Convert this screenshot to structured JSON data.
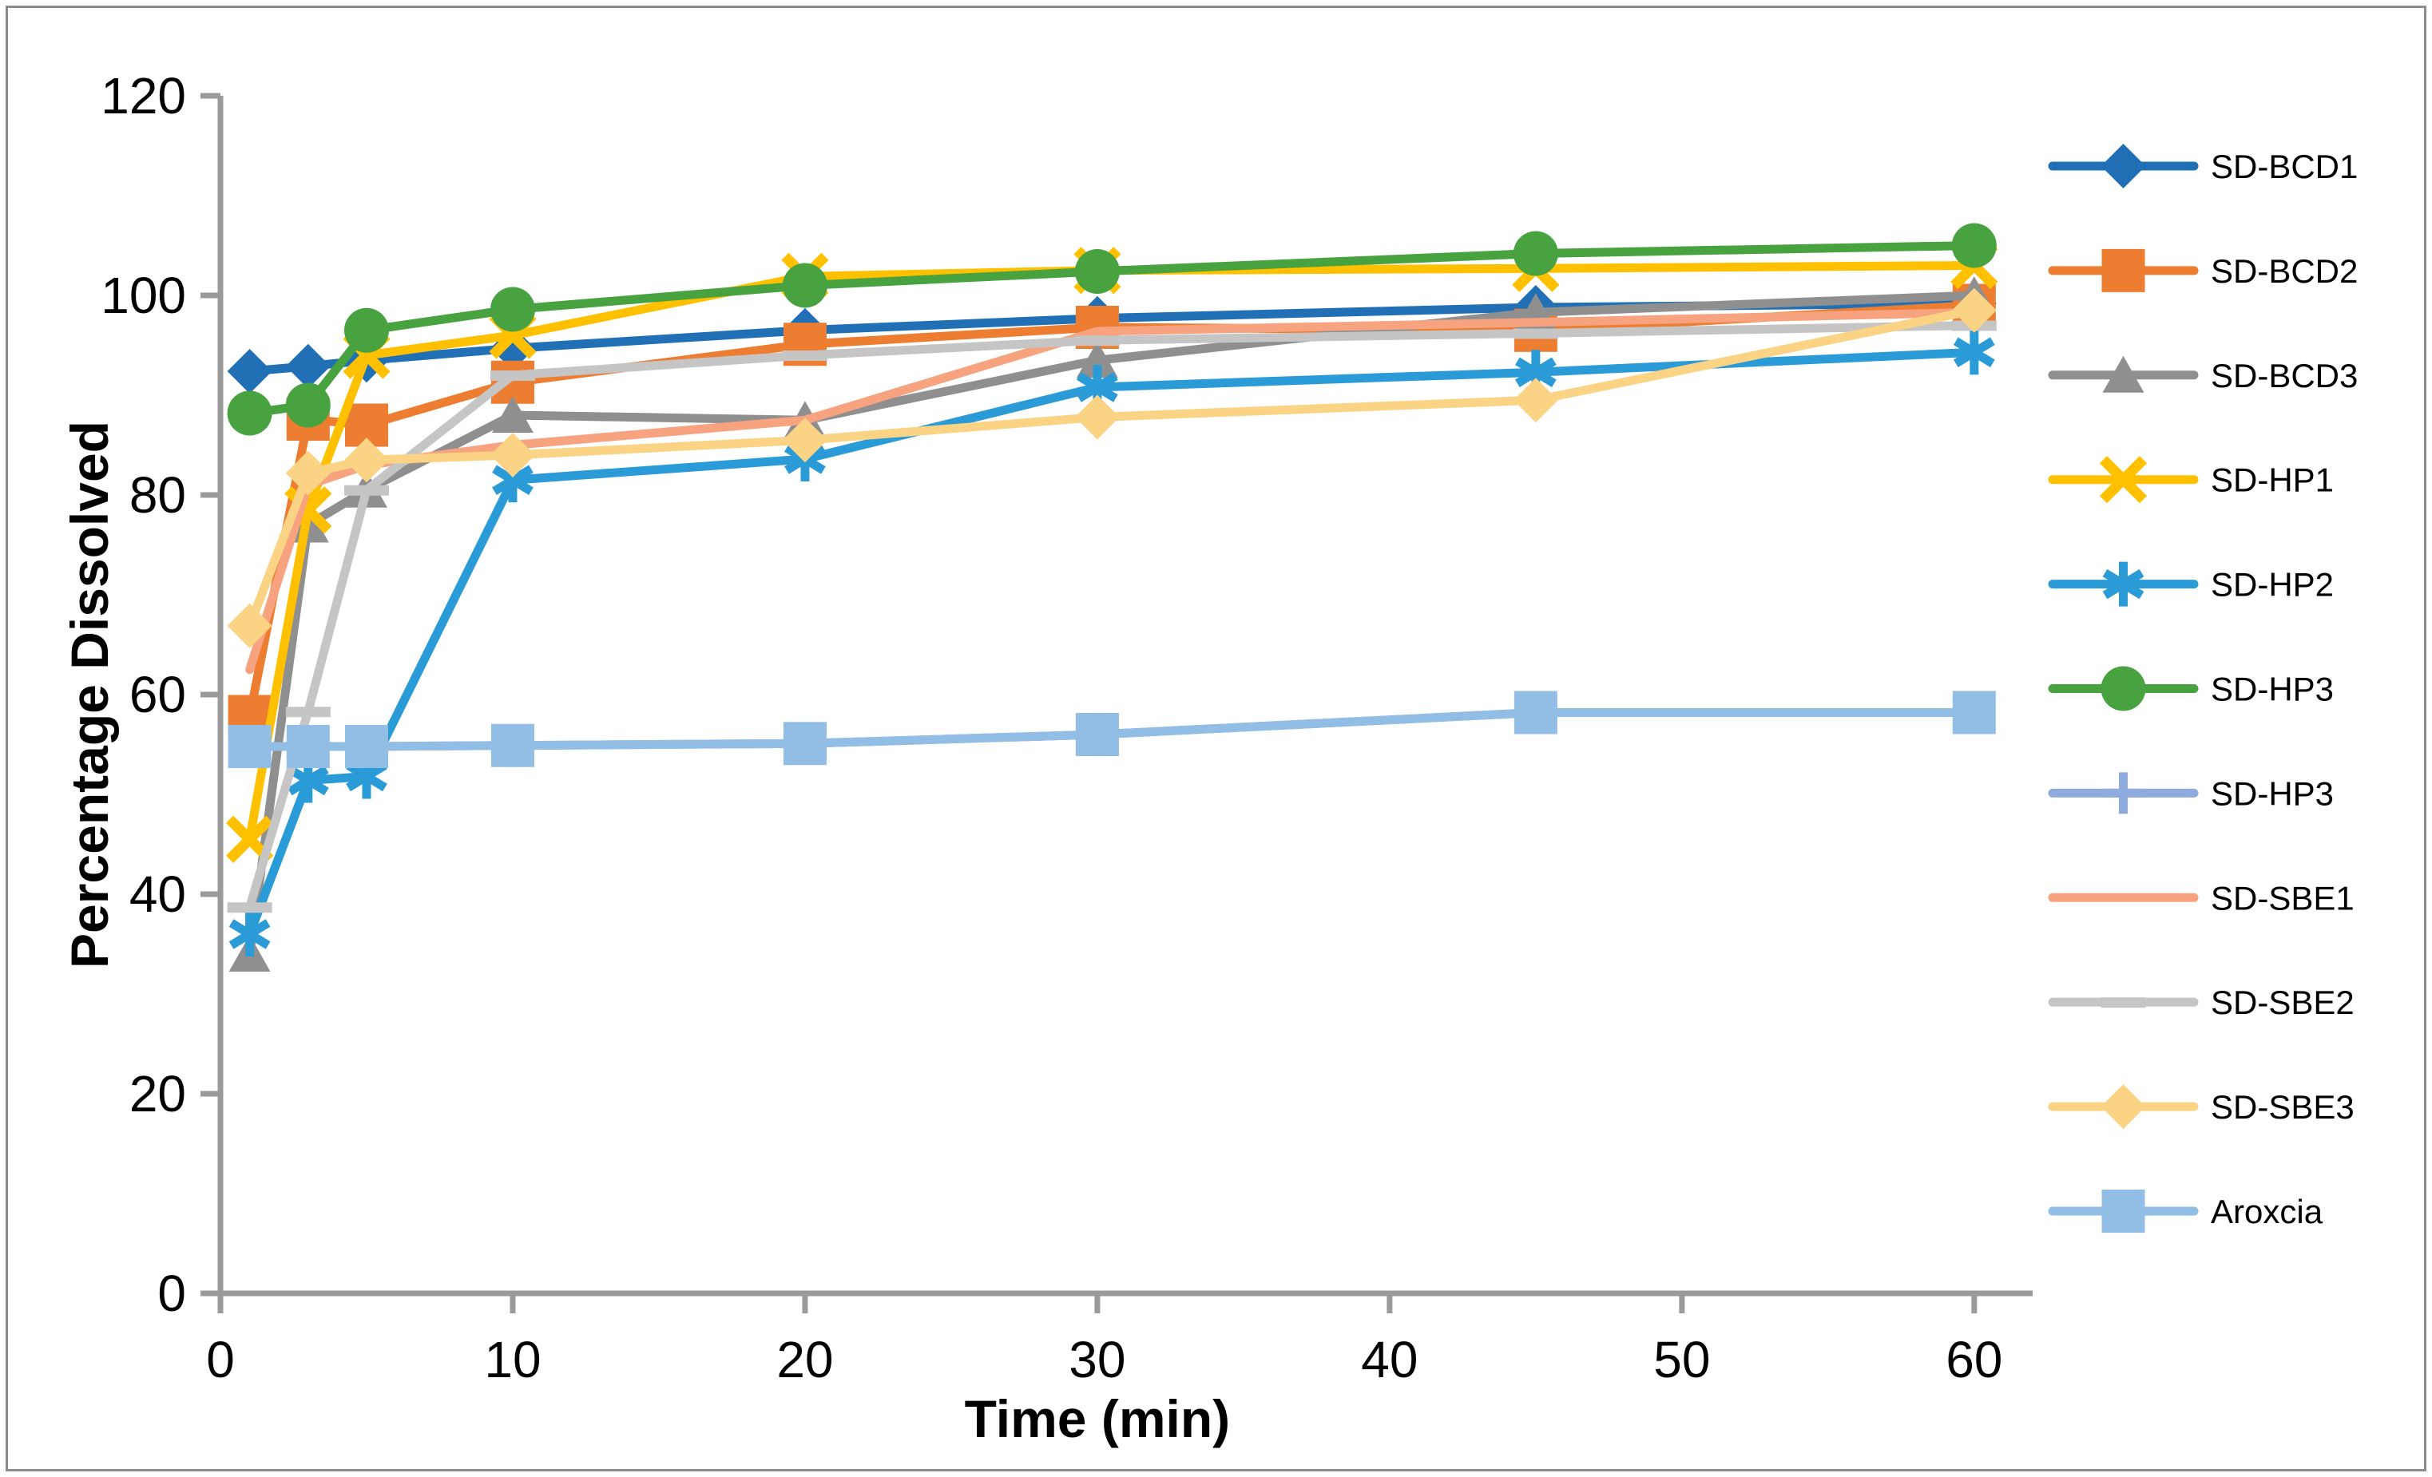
{
  "chart_data": {
    "type": "line",
    "title": "",
    "xlabel": "Time (min)",
    "ylabel": "Percentage Dissolved",
    "x": [
      1,
      3,
      5,
      10,
      20,
      30,
      45,
      60
    ],
    "x_ticks": [
      0,
      10,
      20,
      30,
      40,
      50,
      60
    ],
    "y_ticks": [
      0,
      20,
      40,
      60,
      80,
      100,
      120
    ],
    "xlim": [
      0,
      62
    ],
    "ylim": [
      0,
      120
    ],
    "grid": false,
    "legend_position": "right",
    "series": [
      {
        "name": "SD-BCD1",
        "color": "#2170B5",
        "marker": "diamond",
        "values": [
          92.4,
          92.9,
          93.5,
          94.7,
          96.5,
          97.7,
          98.8,
          99.2
        ]
      },
      {
        "name": "SD-BCD2",
        "color": "#ED7D31",
        "marker": "square",
        "values": [
          57.8,
          87.6,
          87.0,
          91.3,
          95.1,
          96.8,
          96.5,
          99.0
        ]
      },
      {
        "name": "SD-BCD3",
        "color": "#8F8F8F",
        "marker": "triangle",
        "values": [
          34.0,
          77.0,
          80.5,
          88.0,
          87.5,
          93.5,
          98.3,
          100.0
        ]
      },
      {
        "name": "SD-HP1",
        "color": "#FFC000",
        "marker": "x",
        "values": [
          45.5,
          78.5,
          94.0,
          96.0,
          101.9,
          102.5,
          102.7,
          103.0
        ]
      },
      {
        "name": "SD-HP2",
        "color": "#2B9BD7",
        "marker": "asterisk",
        "values": [
          36.0,
          51.4,
          51.8,
          81.5,
          83.6,
          90.8,
          92.3,
          94.3
        ]
      },
      {
        "name": "SD-HP3",
        "color": "#47A23F",
        "marker": "circle",
        "values": [
          88.2,
          89.0,
          96.5,
          98.6,
          101.0,
          102.4,
          104.2,
          105.0
        ]
      },
      {
        "name": "SD-HP3",
        "color": "#8FAADC",
        "marker": "plus",
        "values": [
          54.8,
          54.8,
          54.8,
          54.9,
          55.1,
          56.0,
          58.2,
          58.2
        ]
      },
      {
        "name": "SD-SBE1",
        "color": "#F7A380",
        "marker": "none",
        "values": [
          62.5,
          81.0,
          83.0,
          85.0,
          87.5,
          96.4,
          97.3,
          98.3
        ]
      },
      {
        "name": "SD-SBE2",
        "color": "#C5C5C5",
        "marker": "dash",
        "values": [
          38.7,
          58.3,
          80.5,
          92.0,
          94.0,
          95.5,
          96.2,
          97.0
        ]
      },
      {
        "name": "SD-SBE3",
        "color": "#FBD384",
        "marker": "diamond",
        "values": [
          66.9,
          82.2,
          83.5,
          84.0,
          85.5,
          87.8,
          89.5,
          98.5
        ]
      },
      {
        "name": "Aroxcia",
        "color": "#92BDE4",
        "marker": "square",
        "values": [
          54.8,
          54.8,
          54.8,
          54.9,
          55.1,
          56.0,
          58.2,
          58.2
        ]
      }
    ]
  },
  "colors": {
    "axis": "#9A9A9A",
    "text": "#000000",
    "border": "#8C8C8C",
    "background": "#FFFFFF"
  }
}
